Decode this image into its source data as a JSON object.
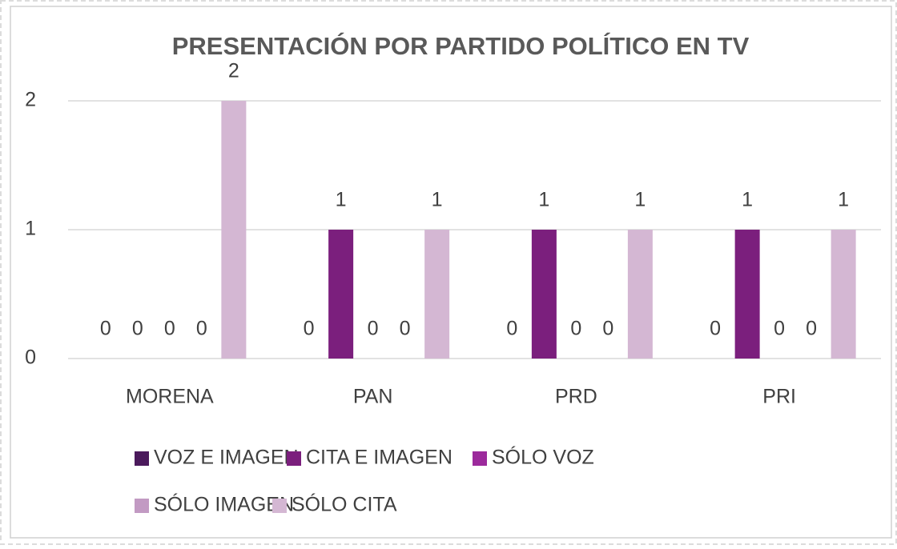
{
  "chart_data": {
    "type": "bar",
    "title": "PRESENTACIÓN POR PARTIDO POLÍTICO EN TV",
    "categories": [
      "MORENA",
      "PAN",
      "PRD",
      "PRI"
    ],
    "series": [
      {
        "name": "VOZ E IMAGEN",
        "color": "#4b1a5c",
        "values": [
          0,
          0,
          0,
          0
        ]
      },
      {
        "name": "CITA E IMAGEN",
        "color": "#7b1f7d",
        "values": [
          0,
          1,
          1,
          1
        ]
      },
      {
        "name": "SÓLO VOZ",
        "color": "#9c2a9c",
        "values": [
          0,
          0,
          0,
          0
        ]
      },
      {
        "name": "SÓLO IMAGEN",
        "color": "#c29ac3",
        "values": [
          0,
          0,
          0,
          0
        ]
      },
      {
        "name": "SÓLO CITA",
        "color": "#d4b7d3",
        "values": [
          2,
          1,
          1,
          1
        ]
      }
    ],
    "ylim": [
      0,
      2
    ],
    "yticks": [
      0,
      1,
      2
    ],
    "grid": true,
    "legend": "bottom"
  }
}
